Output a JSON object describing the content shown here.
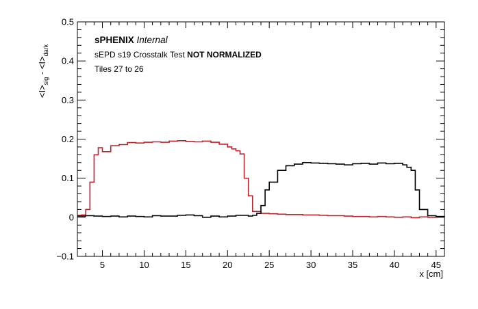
{
  "chart_data": {
    "type": "line",
    "style": "step-histogram",
    "title": "",
    "xlabel": "x [cm]",
    "ylabel": {
      "t1": "<I>",
      "sub1": "sig",
      "mid": " - ",
      "t2": "<I>",
      "sub2": "dark"
    },
    "xlim": [
      2,
      46
    ],
    "ylim": [
      -0.1,
      0.5
    ],
    "x_ticks": [
      5,
      10,
      15,
      20,
      25,
      30,
      35,
      40,
      45
    ],
    "y_ticks": [
      -0.1,
      0,
      0.1,
      0.2,
      0.3,
      0.4,
      0.5
    ],
    "x_tick_labels": [
      "5",
      "10",
      "15",
      "20",
      "25",
      "30",
      "35",
      "40",
      "45"
    ],
    "y_tick_labels": [
      "−0.1",
      "0",
      "0.1",
      "0.2",
      "0.3",
      "0.4",
      "0.5"
    ],
    "grid": false,
    "legend": false,
    "annotations": {
      "bold": "sPHENIX",
      "italic": "Internal",
      "line2_normal": "sEPD s19 Crosstalk Test ",
      "line2_bold": "NOT NORMALIZED",
      "line3": "Tiles 27 to 26"
    },
    "series": [
      {
        "color": "#c0202a",
        "x": [
          2,
          2.5,
          3,
          3.5,
          4,
          4.5,
          5,
          6,
          7,
          8,
          9,
          10,
          11,
          12,
          13,
          14,
          15,
          16,
          17,
          18,
          19,
          20,
          20.5,
          21,
          21.5,
          22,
          22.5,
          23,
          24,
          25,
          26,
          27,
          28,
          29,
          30,
          31,
          32,
          33,
          34,
          35,
          36,
          37,
          38,
          39,
          40,
          41,
          42,
          43,
          44,
          45,
          46
        ],
        "values": [
          0.005,
          0.006,
          0.02,
          0.09,
          0.16,
          0.178,
          0.168,
          0.183,
          0.186,
          0.191,
          0.19,
          0.192,
          0.193,
          0.192,
          0.195,
          0.196,
          0.194,
          0.193,
          0.195,
          0.192,
          0.187,
          0.18,
          0.175,
          0.17,
          0.162,
          0.1,
          0.055,
          0.015,
          0.01,
          0.009,
          0.008,
          0.007,
          0.007,
          0.006,
          0.006,
          0.005,
          0.004,
          0.004,
          0.003,
          0.002,
          0.002,
          0.001,
          0.002,
          0.001,
          0.0,
          0.001,
          -0.001,
          0.001,
          0.0,
          0.002,
          0.0
        ]
      },
      {
        "color": "#000000",
        "x": [
          2,
          3,
          4,
          5,
          6,
          7,
          8,
          9,
          10,
          11,
          12,
          13,
          14,
          15,
          16,
          17,
          18,
          19,
          20,
          21,
          22,
          22.5,
          23,
          23.5,
          24,
          24.5,
          25,
          26,
          27,
          28,
          29,
          30,
          31,
          32,
          33,
          34,
          35,
          36,
          37,
          38,
          39,
          40,
          41,
          41.5,
          42,
          42.5,
          43,
          44,
          45,
          46
        ],
        "values": [
          0.003,
          0.004,
          0.003,
          0.002,
          0.003,
          0.001,
          0.003,
          0.002,
          0.001,
          0.004,
          0.003,
          0.003,
          0.005,
          0.006,
          0.004,
          0.0,
          0.003,
          0.001,
          0.003,
          0.005,
          0.005,
          0.003,
          0.005,
          0.01,
          0.03,
          0.07,
          0.09,
          0.12,
          0.132,
          0.136,
          0.14,
          0.139,
          0.138,
          0.137,
          0.136,
          0.134,
          0.137,
          0.138,
          0.136,
          0.139,
          0.137,
          0.138,
          0.134,
          0.128,
          0.12,
          0.07,
          0.02,
          0.004,
          0.002,
          0.001
        ]
      }
    ]
  }
}
